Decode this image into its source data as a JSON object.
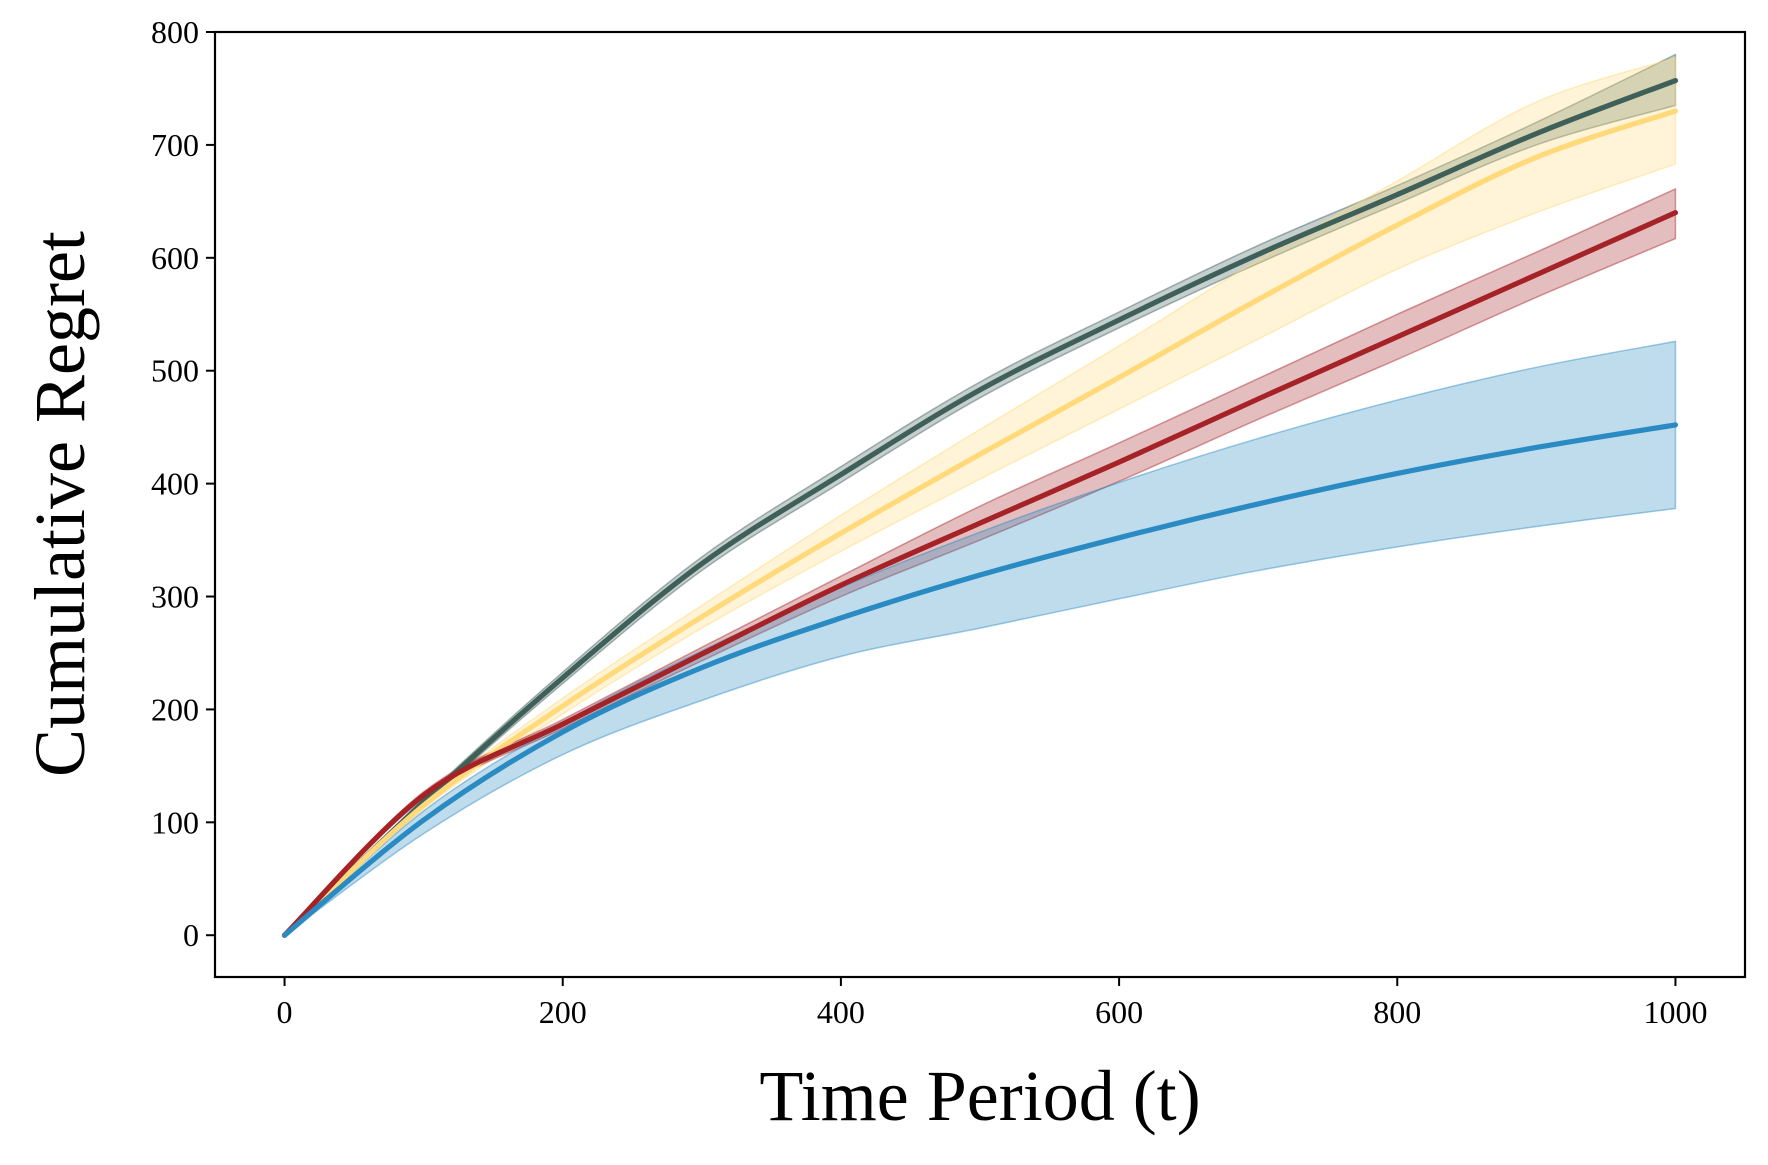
{
  "chart_data": {
    "type": "line",
    "title": "",
    "xlabel": "Time Period (t)",
    "ylabel": "Cumulative Regret",
    "xlim": [
      -50,
      1050
    ],
    "ylim": [
      -37,
      800
    ],
    "xticks": [
      0,
      200,
      400,
      600,
      800,
      1000
    ],
    "yticks": [
      0,
      100,
      200,
      300,
      400,
      500,
      600,
      700,
      800
    ],
    "xtick_labels": [
      "0",
      "200",
      "400",
      "600",
      "800",
      "1000"
    ],
    "ytick_labels": [
      "0",
      "100",
      "200",
      "300",
      "400",
      "500",
      "600",
      "700",
      "800"
    ],
    "grid": false,
    "legend": "none",
    "x": [
      0,
      100,
      200,
      300,
      400,
      500,
      600,
      700,
      800,
      900,
      1000
    ],
    "series": [
      {
        "name": "dark green",
        "color": "#3f5f59",
        "values": [
          0,
          118,
          228,
          329,
          408,
          483,
          545,
          603,
          656,
          710,
          757
        ],
        "lower": [
          0,
          115,
          223,
          323,
          401,
          476,
          538,
          595,
          648,
          700,
          735
        ],
        "upper": [
          0,
          121,
          233,
          335,
          415,
          490,
          552,
          611,
          664,
          720,
          780
        ]
      },
      {
        "name": "yellow",
        "color": "#ffd97a",
        "values": [
          0,
          115,
          203,
          282,
          356,
          426,
          494,
          563,
          629,
          689,
          730
        ],
        "lower": [
          0,
          112,
          196,
          272,
          340,
          404,
          466,
          528,
          590,
          640,
          683
        ],
        "upper": [
          0,
          118,
          210,
          292,
          372,
          448,
          522,
          598,
          668,
          738,
          777
        ]
      },
      {
        "name": "red",
        "color": "#a52327",
        "values": [
          0,
          124,
          187,
          249,
          310,
          365,
          419,
          475,
          530,
          585,
          640
        ],
        "lower": [
          0,
          121,
          183,
          243,
          300,
          350,
          402,
          457,
          510,
          565,
          617
        ],
        "upper": [
          0,
          127,
          191,
          255,
          318,
          380,
          436,
          493,
          550,
          605,
          661
        ]
      },
      {
        "name": "blue",
        "color": "#2a8ac2",
        "values": [
          0,
          102,
          180,
          237,
          281,
          319,
          352,
          382,
          409,
          432,
          452
        ],
        "lower": [
          0,
          90,
          160,
          208,
          247,
          272,
          298,
          323,
          344,
          362,
          378
        ],
        "upper": [
          0,
          110,
          188,
          252,
          308,
          357,
          401,
          440,
          474,
          503,
          526
        ]
      }
    ]
  }
}
